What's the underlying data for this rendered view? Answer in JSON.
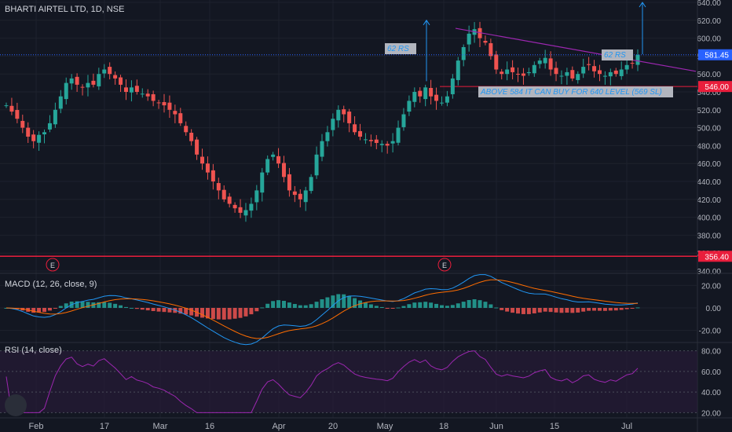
{
  "header": {
    "symbol": "BHARTI AIRTEL LTD, 1D, NSE"
  },
  "macd": {
    "label": "MACD (12, 26, close, 9)"
  },
  "rsi": {
    "label": "RSI (14, close)"
  },
  "colors": {
    "background": "#131722",
    "grid": "#1e222d",
    "up": "#26a69a",
    "down": "#ef5350",
    "macd_line": "#2196f3",
    "signal_line": "#ff6d00",
    "rsi_line": "#9c27b0",
    "rsi_band": "#2a1a3a",
    "trend": "#9c27b0",
    "annotation": "#2196f3",
    "label_box": "#b2b5be",
    "redline": "#e91e3c",
    "price_now": "#2962ff"
  },
  "chart_data": [
    {
      "type": "candlestick",
      "title": "BHARTI AIRTEL LTD, 1D, NSE",
      "ylim": [
        340,
        640
      ],
      "y_ticks": [
        "640.00",
        "620.00",
        "600.00",
        "580.00",
        "560.00",
        "540.00",
        "520.00",
        "500.00",
        "480.00",
        "460.00",
        "440.00",
        "420.00",
        "400.00",
        "380.00",
        "360.00",
        "340.00"
      ],
      "x_ticks": [
        "Feb",
        "17",
        "Mar",
        "16",
        "Apr",
        "20",
        "May",
        "18",
        "Jun",
        "15",
        "Jul"
      ],
      "grid": true,
      "price_labels": [
        {
          "text": "581.45",
          "value": 581.45
        },
        {
          "text": "546.00",
          "value": 546
        },
        {
          "text": "356.40",
          "value": 356.4
        }
      ],
      "annotations": [
        {
          "text": "62 RS"
        },
        {
          "text": "62 RS"
        },
        {
          "text": "ABOVE 584 IT CAN BUY FOR 640 LEVEL  (569 SL)"
        }
      ],
      "earnings_markers": [
        "E",
        "E"
      ],
      "closes": [
        525,
        518,
        510,
        500,
        490,
        485,
        492,
        495,
        505,
        520,
        535,
        550,
        555,
        548,
        545,
        550,
        548,
        560,
        565,
        560,
        555,
        548,
        540,
        545,
        540,
        538,
        535,
        530,
        528,
        525,
        520,
        515,
        505,
        495,
        485,
        470,
        460,
        450,
        440,
        430,
        420,
        415,
        410,
        405,
        408,
        415,
        430,
        450,
        465,
        470,
        460,
        445,
        430,
        425,
        420,
        430,
        445,
        470,
        485,
        495,
        510,
        520,
        515,
        505,
        495,
        490,
        487,
        485,
        483,
        482,
        480,
        485,
        500,
        515,
        530,
        540,
        535,
        545,
        535,
        530,
        528,
        535,
        555,
        575,
        590,
        605,
        610,
        600,
        595,
        580,
        565,
        560,
        565,
        562,
        560,
        558,
        562,
        570,
        575,
        578,
        565,
        560,
        558,
        562,
        555,
        560,
        568,
        570,
        563,
        560,
        558,
        562,
        560,
        565,
        570,
        572,
        581.45
      ]
    },
    {
      "type": "macd",
      "title": "MACD (12, 26, close, 9)",
      "ylim": [
        -28,
        28
      ],
      "y_ticks": [
        "20.00",
        "0.00",
        "-20.00"
      ]
    },
    {
      "type": "line",
      "title": "RSI (14, close)",
      "ylim": [
        15,
        85
      ],
      "y_ticks": [
        "80.00",
        "60.00",
        "40.00",
        "20.00"
      ]
    }
  ]
}
